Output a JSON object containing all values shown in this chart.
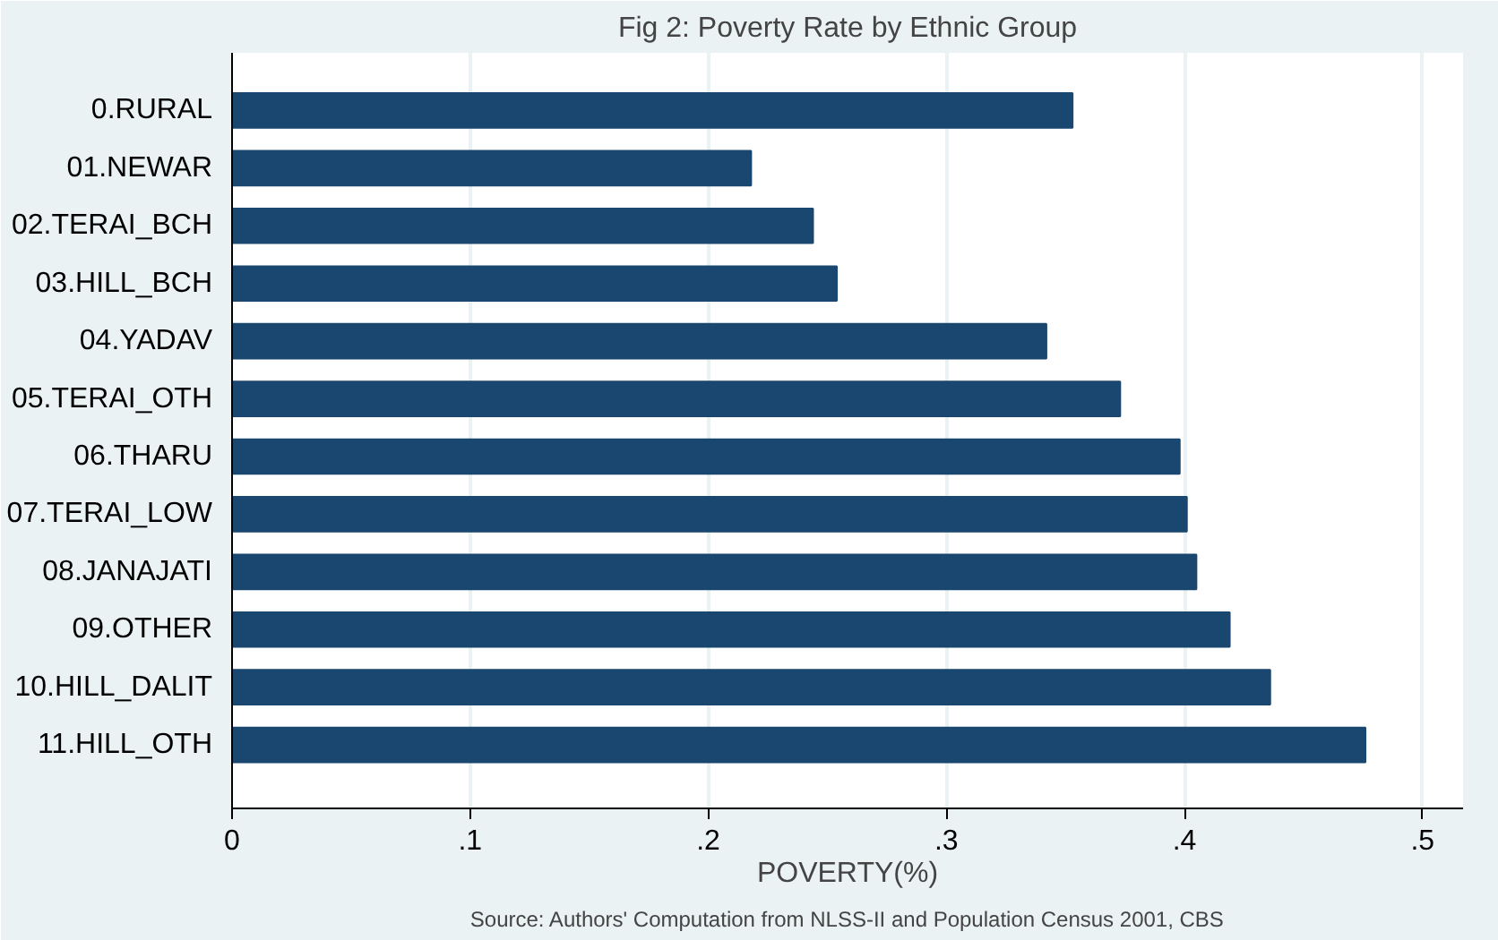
{
  "chart_data": {
    "type": "bar",
    "orientation": "horizontal",
    "title": "Fig 2: Poverty Rate by Ethnic Group",
    "xlabel": "POVERTY(%)",
    "categories": [
      "0.RURAL",
      "01.NEWAR",
      "02.TERAI_BCH",
      "03.HILL_BCH",
      "04.YADAV",
      "05.TERAI_OTH",
      "06.THARU",
      "07.TERAI_LOW",
      "08.JANAJATI",
      "09.OTHER",
      "10.HILL_DALIT",
      "11.HILL_OTH"
    ],
    "values": [
      0.353,
      0.218,
      0.244,
      0.254,
      0.342,
      0.373,
      0.398,
      0.401,
      0.405,
      0.419,
      0.436,
      0.476
    ],
    "color": "#1a476f",
    "xlim": [
      0,
      0.517
    ],
    "xticks": [
      0,
      {
        "value": 0.1,
        "label": ".1"
      },
      {
        "value": 0.2,
        "label": ".2"
      },
      {
        "value": 0.3,
        "label": ".3"
      },
      {
        "value": 0.4,
        "label": ".4"
      },
      {
        "value": 0.5,
        "label": ".5"
      }
    ],
    "grid": "x",
    "annotations": [
      "Source: Authors' Computation from NLSS-II and Population Census 2001, CBS"
    ]
  }
}
